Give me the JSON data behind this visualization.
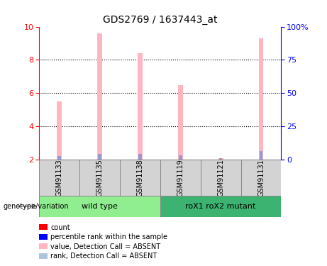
{
  "title": "GDS2769 / 1637443_at",
  "samples": [
    "GSM91133",
    "GSM91135",
    "GSM91138",
    "GSM91119",
    "GSM91121",
    "GSM91131"
  ],
  "pink_values": [
    5.5,
    9.6,
    8.4,
    6.5,
    2.1,
    9.3
  ],
  "blue_values": [
    2.2,
    2.35,
    2.35,
    2.25,
    2.08,
    2.5
  ],
  "ylim_left": [
    2,
    10
  ],
  "ylim_right": [
    0,
    100
  ],
  "yticks_left": [
    2,
    4,
    6,
    8,
    10
  ],
  "yticks_right": [
    0,
    25,
    50,
    75,
    100
  ],
  "ytick_labels_right": [
    "0",
    "25",
    "50",
    "75",
    "100%"
  ],
  "group1_label": "wild type",
  "group2_label": "roX1 roX2 mutant",
  "group1_indices": [
    0,
    1,
    2
  ],
  "group2_indices": [
    3,
    4,
    5
  ],
  "group1_color": "#90EE90",
  "group2_color": "#3CB371",
  "xlabel_group": "genotype/variation",
  "legend_colors": [
    "#FF0000",
    "#0000FF",
    "#FFB6C1",
    "#B0C4DE"
  ],
  "legend_labels": [
    "count",
    "percentile rank within the sample",
    "value, Detection Call = ABSENT",
    "rank, Detection Call = ABSENT"
  ],
  "pink_bar_width": 0.12,
  "blue_bar_width": 0.08,
  "pink_color": "#FFB6C1",
  "blue_color": "#9999CC",
  "tick_color_left": "red",
  "tick_color_right": "blue",
  "sample_box_color": "#D3D3D3",
  "grid_yticks": [
    4,
    6,
    8
  ]
}
